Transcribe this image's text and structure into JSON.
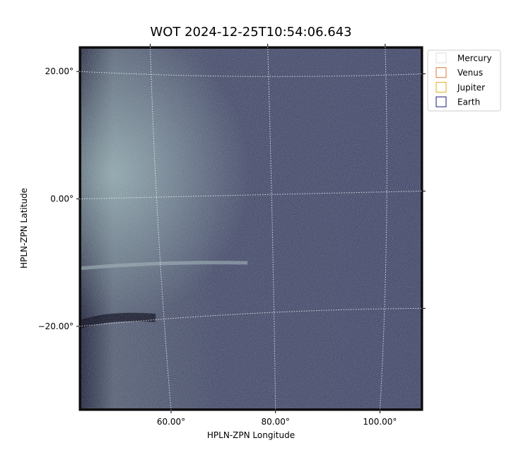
{
  "chart_data": {
    "type": "image",
    "title": "WOT 2024-12-25T10:54:06.643",
    "x_label": "HPLN-ZPN Longitude",
    "y_label": "HPLN-ZPN Latitude",
    "xlim": [
      42.4,
      108.2
    ],
    "ylim": [
      -33.2,
      23.9
    ],
    "xticks": [
      {
        "value": 60,
        "label": "60.00°"
      },
      {
        "value": 80,
        "label": "80.00°"
      },
      {
        "value": 100,
        "label": "100.00°"
      }
    ],
    "yticks": [
      {
        "value": 20,
        "label": "20.00°"
      },
      {
        "value": 0,
        "label": "0.00°"
      },
      {
        "value": -20,
        "label": "−20.00°"
      }
    ],
    "grid": true,
    "legend_position": "outside-right",
    "legend": [
      {
        "name": "Mercury",
        "color": "#dddddd"
      },
      {
        "name": "Venus",
        "color": "#e07b39"
      },
      {
        "name": "Jupiter",
        "color": "#e0b020"
      },
      {
        "name": "Earth",
        "color": "#1a1a7a"
      }
    ]
  }
}
